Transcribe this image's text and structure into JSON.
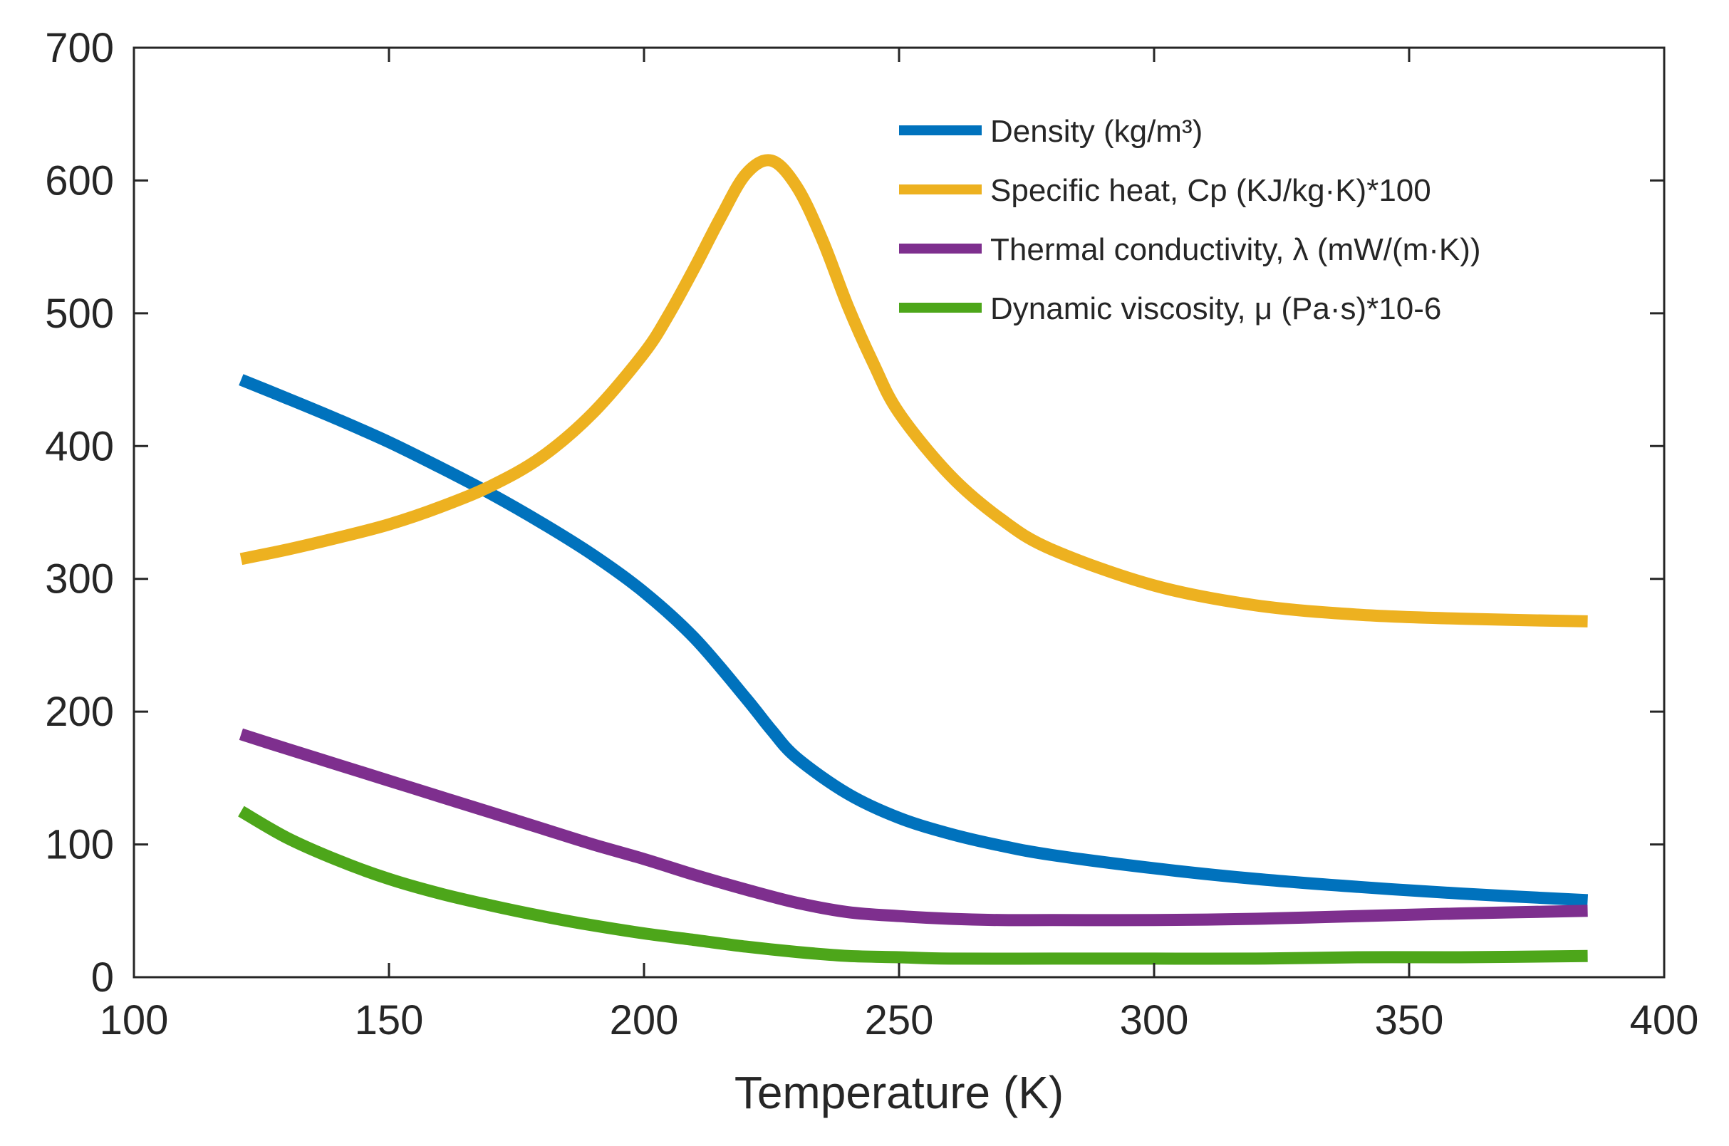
{
  "chart_data": {
    "type": "line",
    "title": "",
    "xlabel": "Temperature (K)",
    "ylabel": "",
    "xlim": [
      100,
      400
    ],
    "ylim": [
      0,
      700
    ],
    "xticks": [
      "100",
      "150",
      "200",
      "250",
      "300",
      "350",
      "400"
    ],
    "yticks": [
      "0",
      "100",
      "200",
      "300",
      "400",
      "500",
      "600",
      "700"
    ],
    "grid": false,
    "legend_position": "top-right",
    "series": [
      {
        "name": "Density (kg/m³)",
        "color": "#0072BD",
        "x": [
          121,
          130,
          140,
          150,
          160,
          170,
          180,
          190,
          200,
          210,
          220,
          225,
          230,
          240,
          250,
          260,
          270,
          280,
          300,
          320,
          340,
          360,
          385
        ],
        "y": [
          450,
          436,
          420,
          403,
          384,
          364,
          342,
          318,
          290,
          255,
          210,
          186,
          165,
          138,
          120,
          108,
          99,
          92,
          82,
          74,
          68,
          63,
          58
        ]
      },
      {
        "name": "Specific heat, Cp (KJ/kg·K)*100",
        "color": "#EDB120",
        "x": [
          121,
          130,
          140,
          150,
          160,
          170,
          180,
          190,
          200,
          205,
          210,
          215,
          220,
          225,
          230,
          235,
          240,
          245,
          250,
          260,
          270,
          280,
          300,
          320,
          340,
          360,
          385
        ],
        "y": [
          315,
          322,
          331,
          341,
          354,
          370,
          392,
          425,
          470,
          500,
          535,
          572,
          605,
          615,
          595,
          555,
          505,
          462,
          425,
          378,
          345,
          322,
          295,
          280,
          273,
          270,
          268
        ]
      },
      {
        "name": "Thermal conductivity, λ (mW/(m·K))",
        "color": "#7E2F8E",
        "x": [
          121,
          130,
          140,
          150,
          160,
          170,
          180,
          190,
          200,
          210,
          220,
          230,
          240,
          250,
          260,
          270,
          280,
          300,
          320,
          340,
          360,
          385
        ],
        "y": [
          183,
          172,
          160,
          148,
          136,
          124,
          112,
          100,
          89,
          77,
          66,
          56,
          49,
          46,
          44,
          43,
          43,
          43,
          44,
          46,
          48,
          50
        ]
      },
      {
        "name": "Dynamic viscosity, μ (Pa·s)*10-6",
        "color": "#4DA61A",
        "x": [
          121,
          130,
          140,
          150,
          160,
          170,
          180,
          190,
          200,
          210,
          220,
          230,
          240,
          250,
          260,
          280,
          300,
          320,
          340,
          360,
          385
        ],
        "y": [
          125,
          105,
          88,
          74,
          63,
          54,
          46,
          39,
          33,
          28,
          23,
          19,
          16,
          15,
          14,
          14,
          14,
          14,
          15,
          15,
          16
        ]
      }
    ]
  }
}
